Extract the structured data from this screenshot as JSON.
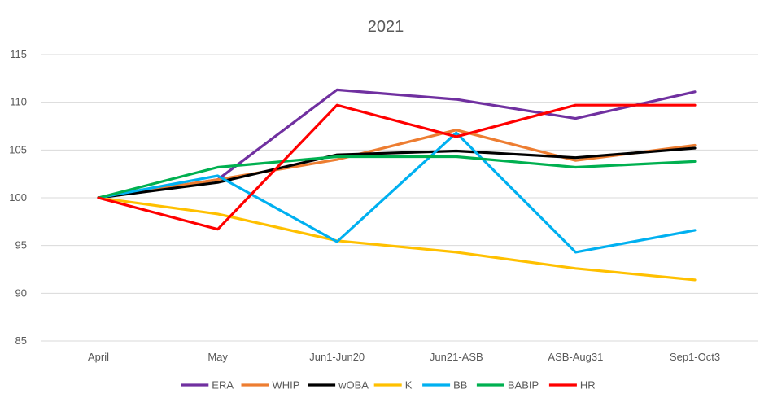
{
  "chart_data": {
    "type": "line",
    "title": "2021",
    "xlabel": "",
    "ylabel": "",
    "categories": [
      "April",
      "May",
      "Jun1-Jun20",
      "Jun21-ASB",
      "ASB-Aug31",
      "Sep1-Oct3"
    ],
    "ylim": [
      85,
      115
    ],
    "yticks": [
      85,
      90,
      95,
      100,
      105,
      110,
      115
    ],
    "grid": true,
    "legend_position": "bottom",
    "series": [
      {
        "name": "ERA",
        "color": "#7030A0",
        "values": [
          100,
          101.9,
          111.3,
          110.3,
          108.3,
          111.1
        ]
      },
      {
        "name": "WHIP",
        "color": "#ED7D31",
        "values": [
          100,
          101.9,
          104.0,
          107.1,
          103.9,
          105.5
        ]
      },
      {
        "name": "wOBA",
        "color": "#000000",
        "values": [
          100,
          101.6,
          104.5,
          104.9,
          104.2,
          105.2
        ]
      },
      {
        "name": "K",
        "color": "#FFC000",
        "values": [
          100,
          98.3,
          95.5,
          94.3,
          92.6,
          91.4
        ]
      },
      {
        "name": "BB",
        "color": "#00B0F0",
        "values": [
          100,
          102.3,
          95.4,
          106.8,
          94.3,
          96.6
        ]
      },
      {
        "name": "BABIP",
        "color": "#00B050",
        "values": [
          100,
          103.2,
          104.3,
          104.3,
          103.2,
          103.8
        ]
      },
      {
        "name": "HR",
        "color": "#FF0000",
        "values": [
          100,
          96.7,
          109.7,
          106.4,
          109.7,
          109.7
        ]
      }
    ]
  }
}
